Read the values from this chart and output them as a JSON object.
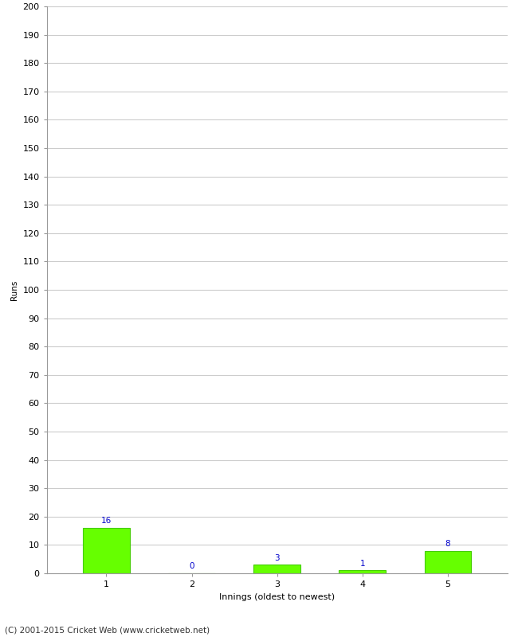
{
  "xlabel": "Innings (oldest to newest)",
  "ylabel": "Runs",
  "categories": [
    1,
    2,
    3,
    4,
    5
  ],
  "values": [
    16,
    0,
    3,
    1,
    8
  ],
  "bar_color": "#66ff00",
  "bar_edge_color": "#44cc00",
  "label_color": "#0000cc",
  "ylim": [
    0,
    200
  ],
  "yticks": [
    0,
    10,
    20,
    30,
    40,
    50,
    60,
    70,
    80,
    90,
    100,
    110,
    120,
    130,
    140,
    150,
    160,
    170,
    180,
    190,
    200
  ],
  "background_color": "#ffffff",
  "grid_color": "#cccccc",
  "footer": "(C) 2001-2015 Cricket Web (www.cricketweb.net)",
  "label_fontsize": 7.5,
  "axis_fontsize": 8,
  "ylabel_fontsize": 7.5,
  "footer_fontsize": 7.5
}
